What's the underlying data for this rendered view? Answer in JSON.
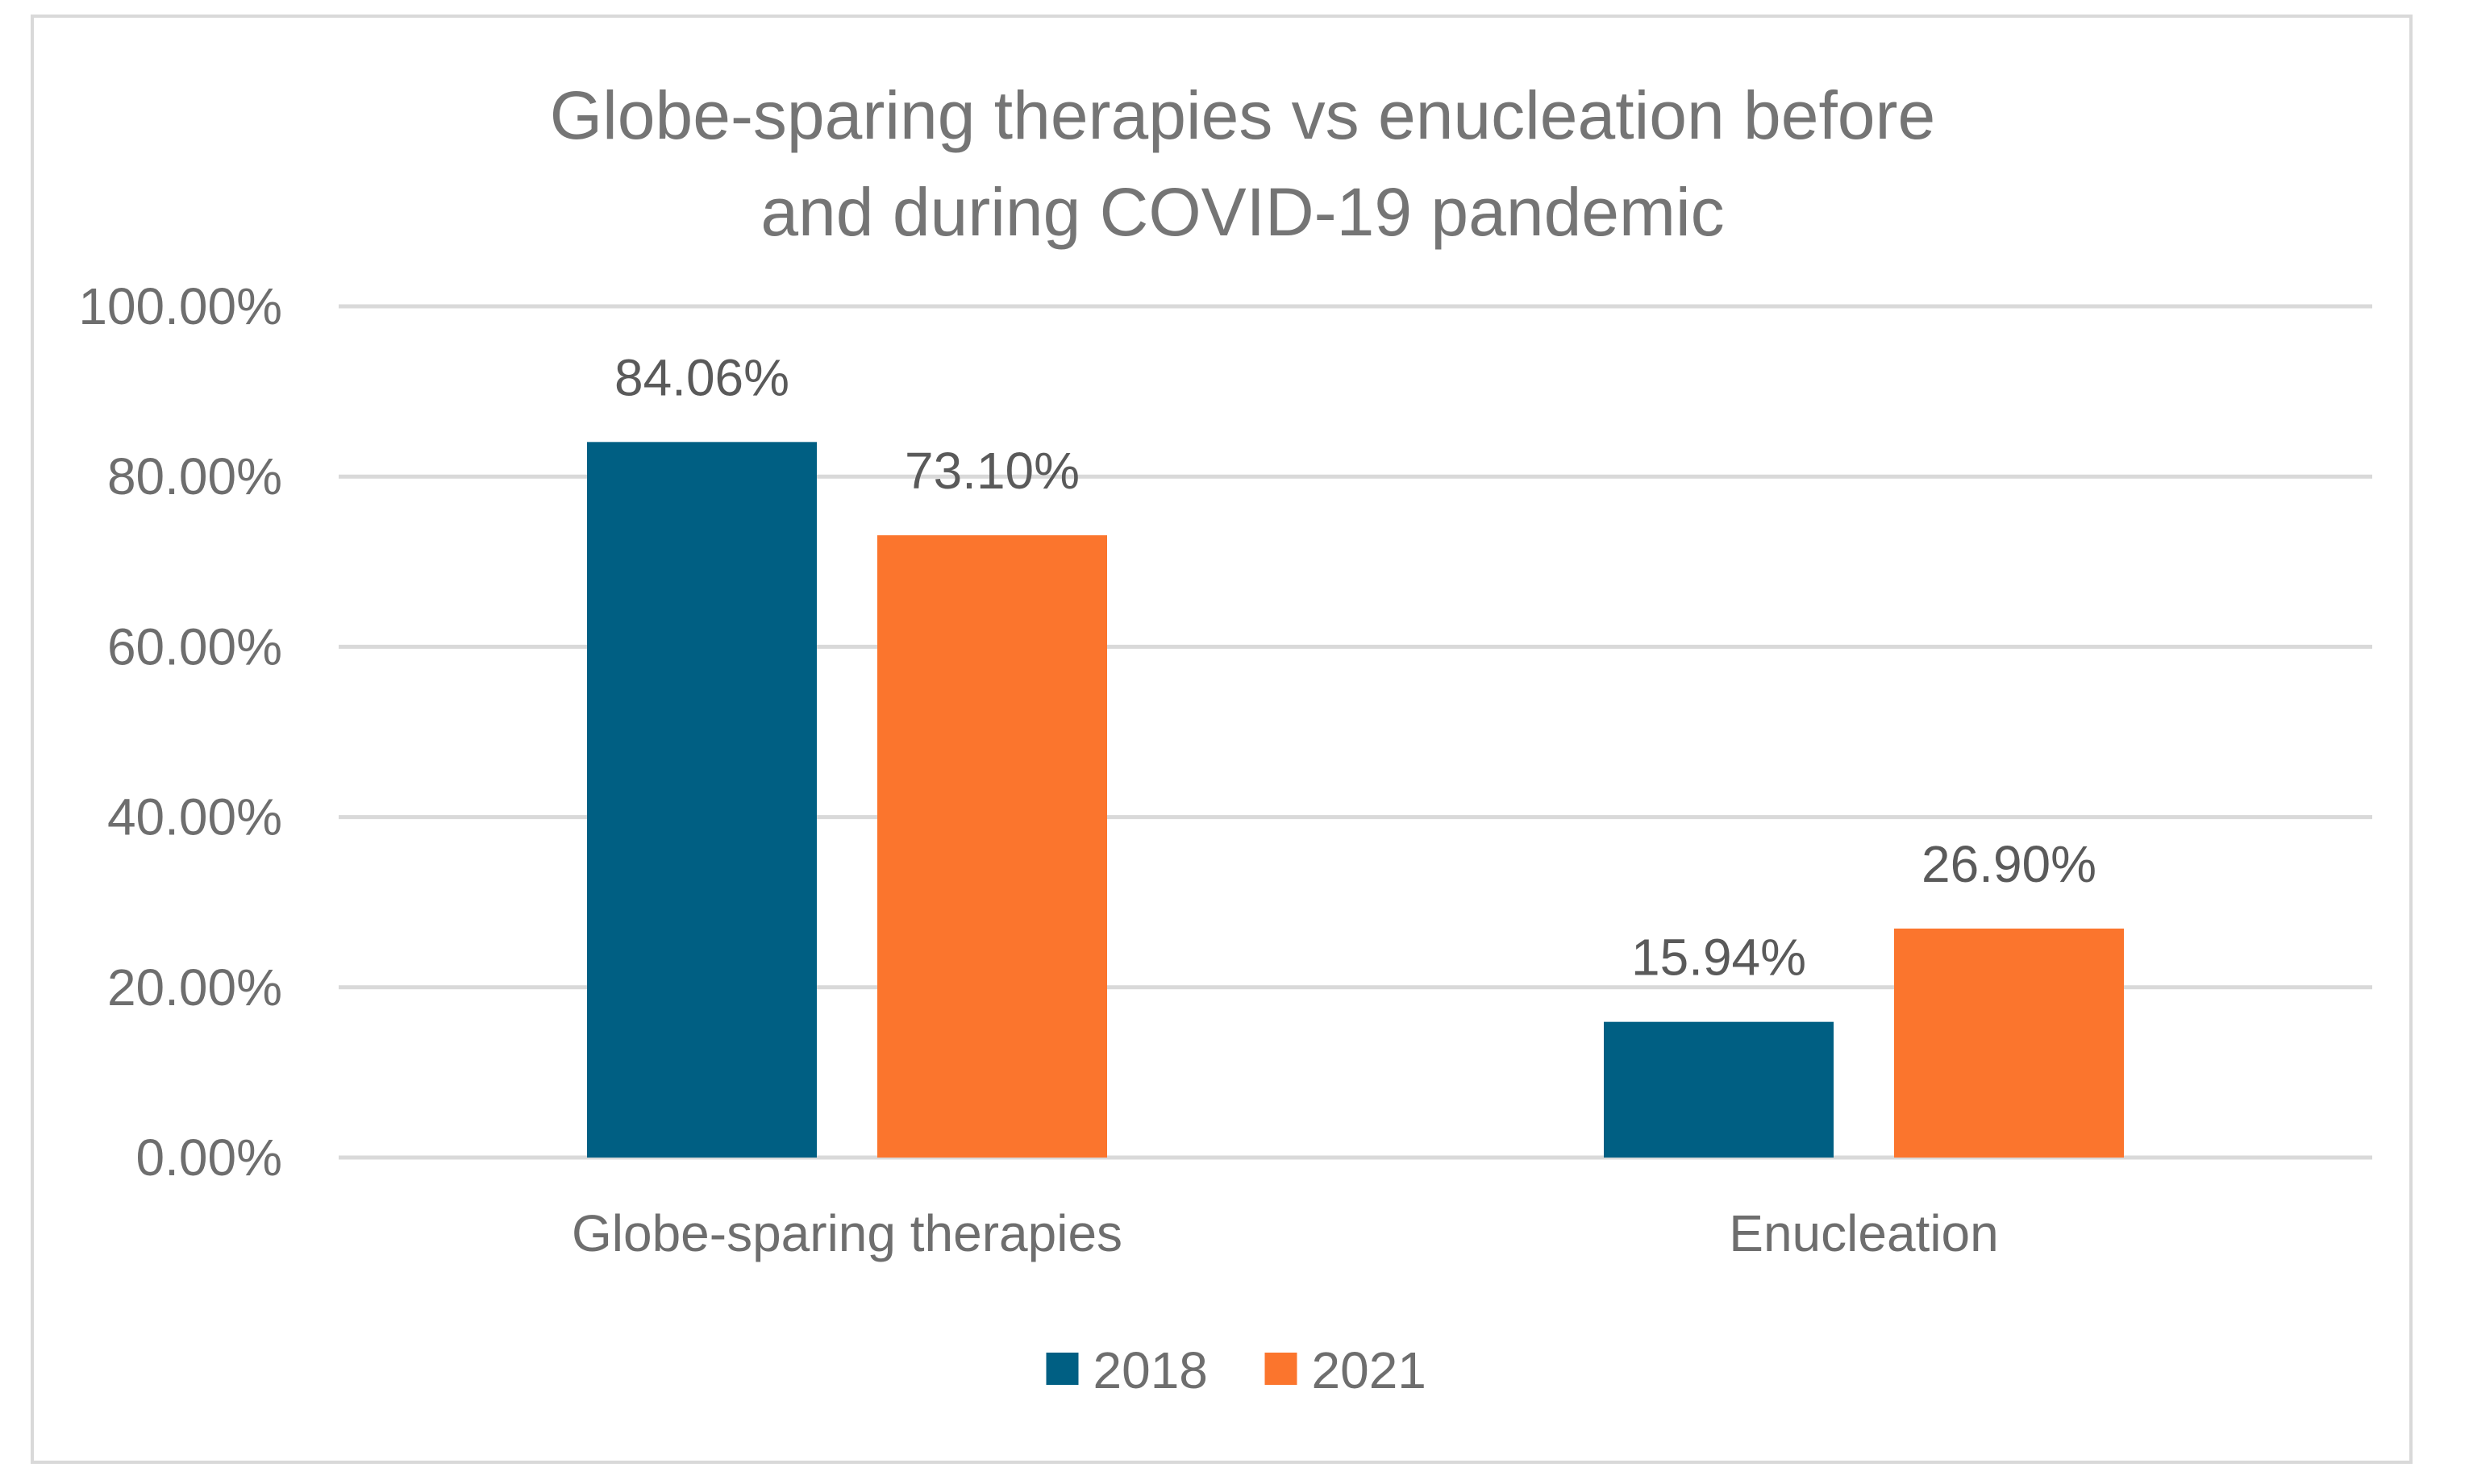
{
  "chart_data": {
    "type": "bar",
    "title_lines": [
      "Globe-sparing therapies vs enucleation before",
      "and during COVID-19 pandemic"
    ],
    "categories": [
      "Globe-sparing therapies",
      "Enucleation"
    ],
    "series": [
      {
        "name": "2018",
        "color": "#005f83",
        "values": [
          84.06,
          15.94
        ],
        "labels": [
          "84.06%",
          "15.94%"
        ]
      },
      {
        "name": "2021",
        "color": "#fb752d",
        "values": [
          73.1,
          26.9
        ],
        "labels": [
          "73.10%",
          "26.90%"
        ]
      }
    ],
    "ylim": [
      0,
      100
    ],
    "yticks": [
      0,
      20,
      40,
      60,
      80,
      100
    ],
    "ytick_labels": [
      "0.00%",
      "20.00%",
      "40.00%",
      "60.00%",
      "80.00%",
      "100.00%"
    ],
    "xlabel": "",
    "ylabel": "",
    "grid": true,
    "legend_position": "bottom"
  }
}
